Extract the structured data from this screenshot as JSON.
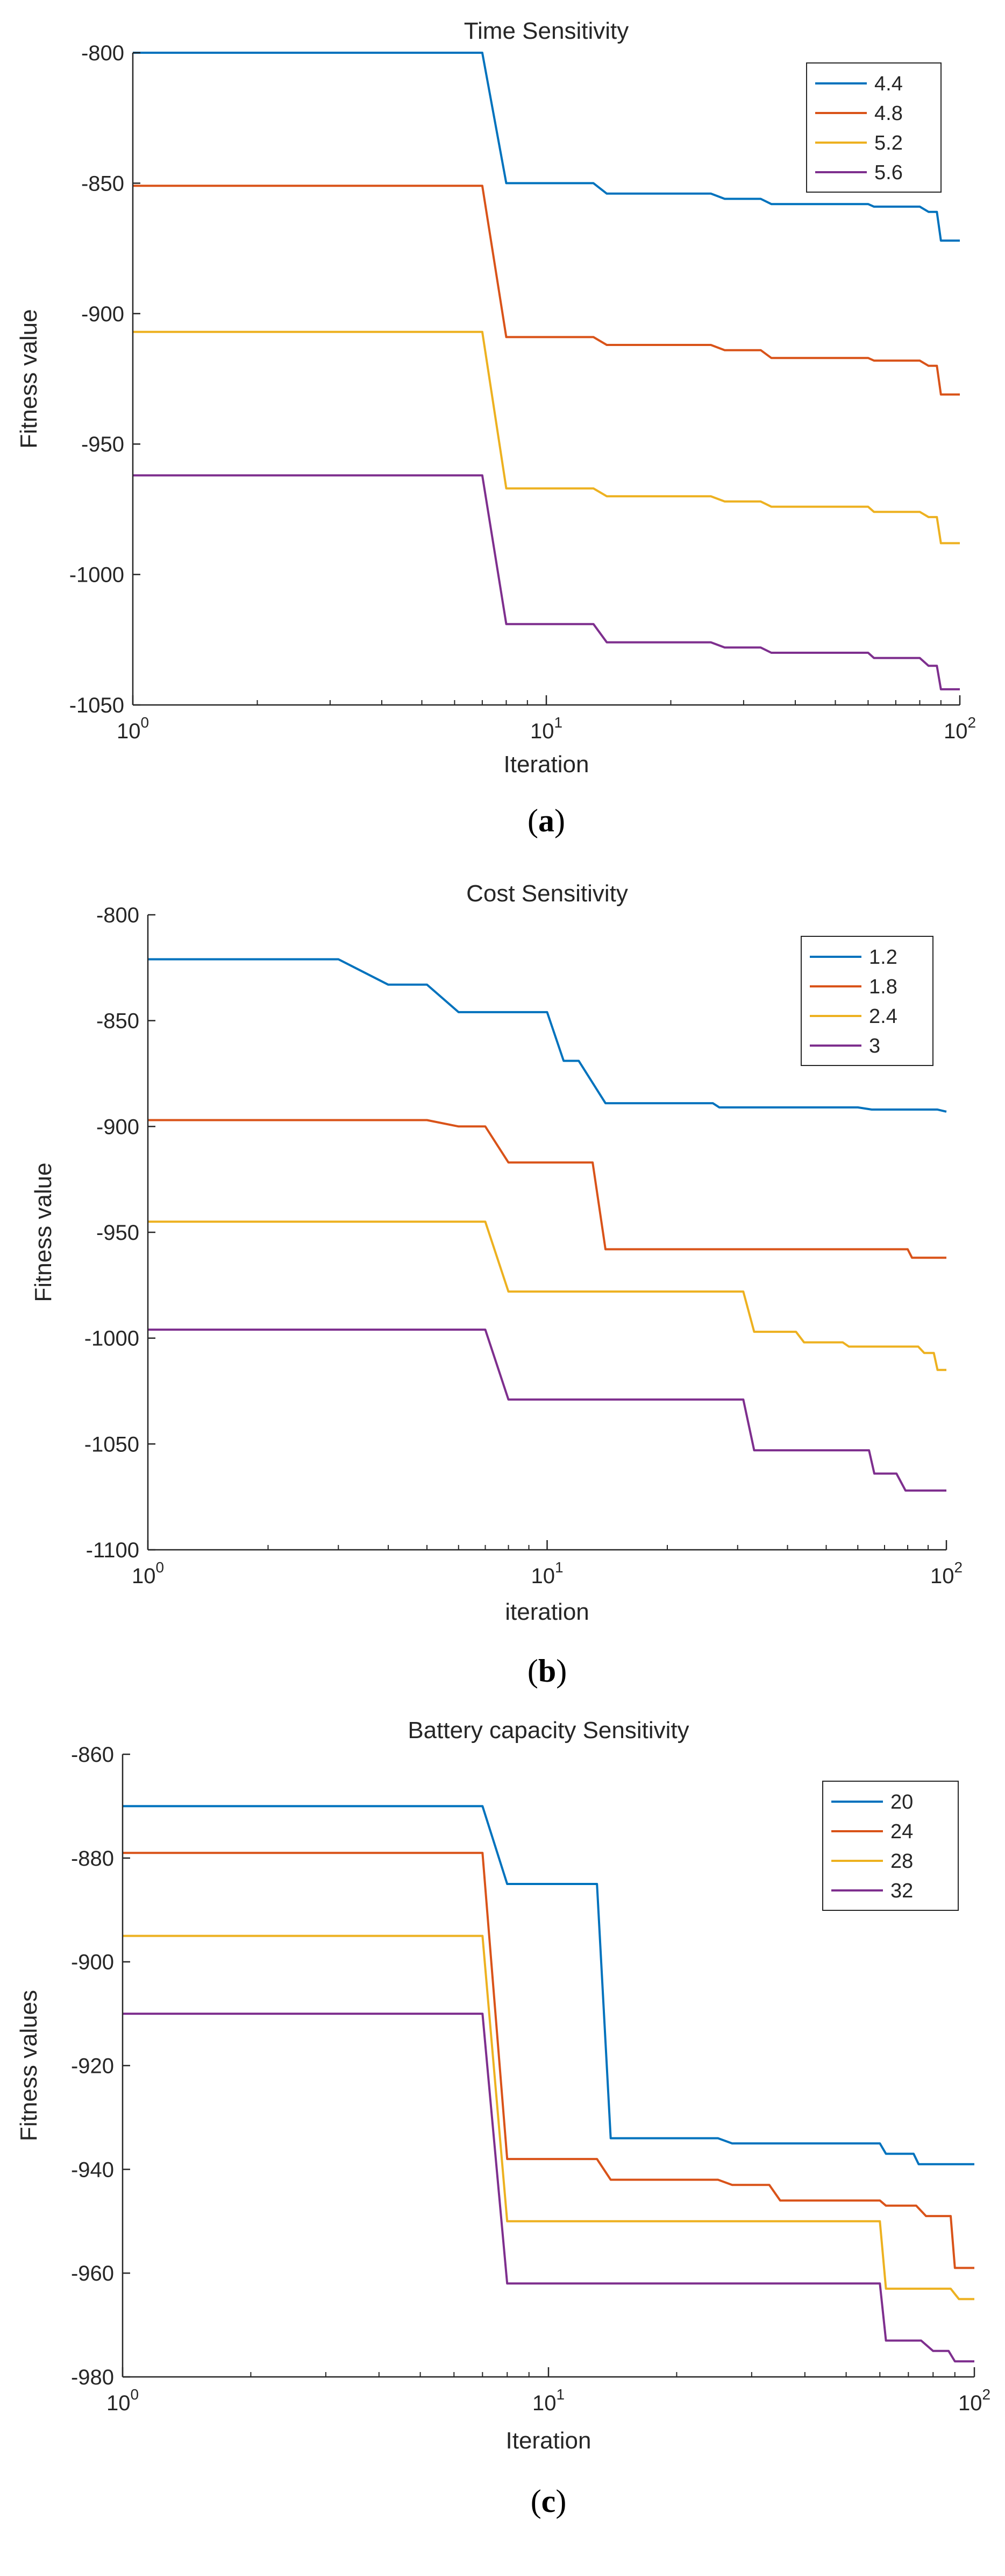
{
  "chart_data": [
    {
      "type": "line",
      "caption_letter": "a",
      "title": "Time Sensitivity",
      "xlabel": "Iteration",
      "ylabel": "Fitness value",
      "xscale": "log",
      "xlim": [
        1,
        100
      ],
      "ylim": [
        -1050,
        -800
      ],
      "yticks": [
        -800,
        -850,
        -900,
        -950,
        -1000,
        -1050
      ],
      "xtick_labels": [
        {
          "base": "10",
          "exp": "0"
        },
        {
          "base": "10",
          "exp": "1"
        },
        {
          "base": "10",
          "exp": "2"
        }
      ],
      "legend_position": "top-right",
      "series": [
        {
          "name": "4.4",
          "color": "#0072BD",
          "steps": [
            [
              1,
              -800
            ],
            [
              7,
              -800
            ],
            [
              8,
              -850
            ],
            [
              13,
              -850
            ],
            [
              14,
              -854
            ],
            [
              25,
              -854
            ],
            [
              27,
              -856
            ],
            [
              33,
              -856
            ],
            [
              35,
              -858
            ],
            [
              60,
              -858
            ],
            [
              62,
              -859
            ],
            [
              80,
              -859
            ],
            [
              84,
              -861
            ],
            [
              88,
              -861
            ],
            [
              90,
              -872
            ],
            [
              100,
              -872
            ]
          ]
        },
        {
          "name": "4.8",
          "color": "#D95319",
          "steps": [
            [
              1,
              -851
            ],
            [
              7,
              -851
            ],
            [
              8,
              -909
            ],
            [
              13,
              -909
            ],
            [
              14,
              -912
            ],
            [
              25,
              -912
            ],
            [
              27,
              -914
            ],
            [
              33,
              -914
            ],
            [
              35,
              -917
            ],
            [
              60,
              -917
            ],
            [
              62,
              -918
            ],
            [
              80,
              -918
            ],
            [
              84,
              -920
            ],
            [
              88,
              -920
            ],
            [
              90,
              -931
            ],
            [
              100,
              -931
            ]
          ]
        },
        {
          "name": "5.2",
          "color": "#EDB120",
          "steps": [
            [
              1,
              -907
            ],
            [
              7,
              -907
            ],
            [
              8,
              -967
            ],
            [
              13,
              -967
            ],
            [
              14,
              -970
            ],
            [
              25,
              -970
            ],
            [
              27,
              -972
            ],
            [
              33,
              -972
            ],
            [
              35,
              -974
            ],
            [
              60,
              -974
            ],
            [
              62,
              -976
            ],
            [
              80,
              -976
            ],
            [
              84,
              -978
            ],
            [
              88,
              -978
            ],
            [
              90,
              -988
            ],
            [
              100,
              -988
            ]
          ]
        },
        {
          "name": "5.6",
          "color": "#7E2F8E",
          "steps": [
            [
              1,
              -962
            ],
            [
              7,
              -962
            ],
            [
              8,
              -1019
            ],
            [
              13,
              -1019
            ],
            [
              14,
              -1026
            ],
            [
              25,
              -1026
            ],
            [
              27,
              -1028
            ],
            [
              33,
              -1028
            ],
            [
              35,
              -1030
            ],
            [
              60,
              -1030
            ],
            [
              62,
              -1032
            ],
            [
              80,
              -1032
            ],
            [
              84,
              -1035
            ],
            [
              88,
              -1035
            ],
            [
              90,
              -1044
            ],
            [
              100,
              -1044
            ]
          ]
        }
      ]
    },
    {
      "type": "line",
      "caption_letter": "b",
      "title": "Cost Sensitivity",
      "xlabel": "iteration",
      "ylabel": "Fitness value",
      "xscale": "log",
      "xlim": [
        1,
        100
      ],
      "ylim": [
        -1100,
        -800
      ],
      "yticks": [
        -800,
        -850,
        -900,
        -950,
        -1000,
        -1050,
        -1100
      ],
      "xtick_labels": [
        {
          "base": "10",
          "exp": "0"
        },
        {
          "base": "10",
          "exp": "1"
        },
        {
          "base": "10",
          "exp": "2"
        }
      ],
      "legend_position": "top-right",
      "series": [
        {
          "name": "1.2",
          "color": "#0072BD",
          "steps": [
            [
              1,
              -821
            ],
            [
              3,
              -821
            ],
            [
              4,
              -833
            ],
            [
              5,
              -833
            ],
            [
              6,
              -846
            ],
            [
              10,
              -846
            ],
            [
              11,
              -869
            ],
            [
              12,
              -869
            ],
            [
              14,
              -889
            ],
            [
              26,
              -889
            ],
            [
              27,
              -891
            ],
            [
              60,
              -891
            ],
            [
              65,
              -892
            ],
            [
              95,
              -892
            ],
            [
              100,
              -893
            ]
          ]
        },
        {
          "name": "1.8",
          "color": "#D95319",
          "steps": [
            [
              1,
              -897
            ],
            [
              5,
              -897
            ],
            [
              6,
              -900
            ],
            [
              7,
              -900
            ],
            [
              8,
              -917
            ],
            [
              13,
              -917
            ],
            [
              14,
              -958
            ],
            [
              80,
              -958
            ],
            [
              82,
              -962
            ],
            [
              100,
              -962
            ]
          ]
        },
        {
          "name": "2.4",
          "color": "#EDB120",
          "steps": [
            [
              1,
              -945
            ],
            [
              7,
              -945
            ],
            [
              8,
              -978
            ],
            [
              31,
              -978
            ],
            [
              33,
              -997
            ],
            [
              42,
              -997
            ],
            [
              44,
              -1002
            ],
            [
              55,
              -1002
            ],
            [
              57,
              -1004
            ],
            [
              85,
              -1004
            ],
            [
              88,
              -1007
            ],
            [
              93,
              -1007
            ],
            [
              95,
              -1015
            ],
            [
              100,
              -1015
            ]
          ]
        },
        {
          "name": "3",
          "color": "#7E2F8E",
          "steps": [
            [
              1,
              -996
            ],
            [
              7,
              -996
            ],
            [
              8,
              -1029
            ],
            [
              31,
              -1029
            ],
            [
              33,
              -1053
            ],
            [
              64,
              -1053
            ],
            [
              66,
              -1064
            ],
            [
              75,
              -1064
            ],
            [
              79,
              -1072
            ],
            [
              100,
              -1072
            ]
          ]
        }
      ]
    },
    {
      "type": "line",
      "caption_letter": "c",
      "title": "Battery capacity Sensitivity",
      "xlabel": "Iteration",
      "ylabel": "Fitness values",
      "xscale": "log",
      "xlim": [
        1,
        100
      ],
      "ylim": [
        -980,
        -860
      ],
      "yticks": [
        -860,
        -880,
        -900,
        -920,
        -940,
        -960,
        -980
      ],
      "xtick_labels": [
        {
          "base": "10",
          "exp": "0"
        },
        {
          "base": "10",
          "exp": "1"
        },
        {
          "base": "10",
          "exp": "2"
        }
      ],
      "legend_position": "top-right",
      "series": [
        {
          "name": "20",
          "color": "#0072BD",
          "steps": [
            [
              1,
              -870
            ],
            [
              7,
              -870
            ],
            [
              8,
              -885
            ],
            [
              13,
              -885
            ],
            [
              14,
              -934
            ],
            [
              25,
              -934
            ],
            [
              27,
              -935
            ],
            [
              60,
              -935
            ],
            [
              62,
              -937
            ],
            [
              72,
              -937
            ],
            [
              74,
              -939
            ],
            [
              100,
              -939
            ]
          ]
        },
        {
          "name": "24",
          "color": "#D95319",
          "steps": [
            [
              1,
              -879
            ],
            [
              7,
              -879
            ],
            [
              8,
              -938
            ],
            [
              13,
              -938
            ],
            [
              14,
              -942
            ],
            [
              25,
              -942
            ],
            [
              27,
              -943
            ],
            [
              33,
              -943
            ],
            [
              35,
              -946
            ],
            [
              60,
              -946
            ],
            [
              62,
              -947
            ],
            [
              73,
              -947
            ],
            [
              77,
              -949
            ],
            [
              88,
              -949
            ],
            [
              90,
              -959
            ],
            [
              100,
              -959
            ]
          ]
        },
        {
          "name": "28",
          "color": "#EDB120",
          "steps": [
            [
              1,
              -895
            ],
            [
              7,
              -895
            ],
            [
              8,
              -950
            ],
            [
              60,
              -950
            ],
            [
              62,
              -963
            ],
            [
              88,
              -963
            ],
            [
              92,
              -965
            ],
            [
              100,
              -965
            ]
          ]
        },
        {
          "name": "32",
          "color": "#7E2F8E",
          "steps": [
            [
              1,
              -910
            ],
            [
              7,
              -910
            ],
            [
              8,
              -962
            ],
            [
              60,
              -962
            ],
            [
              62,
              -973
            ],
            [
              75,
              -973
            ],
            [
              80,
              -975
            ],
            [
              87,
              -975
            ],
            [
              90,
              -977
            ],
            [
              100,
              -977
            ]
          ]
        }
      ]
    }
  ]
}
